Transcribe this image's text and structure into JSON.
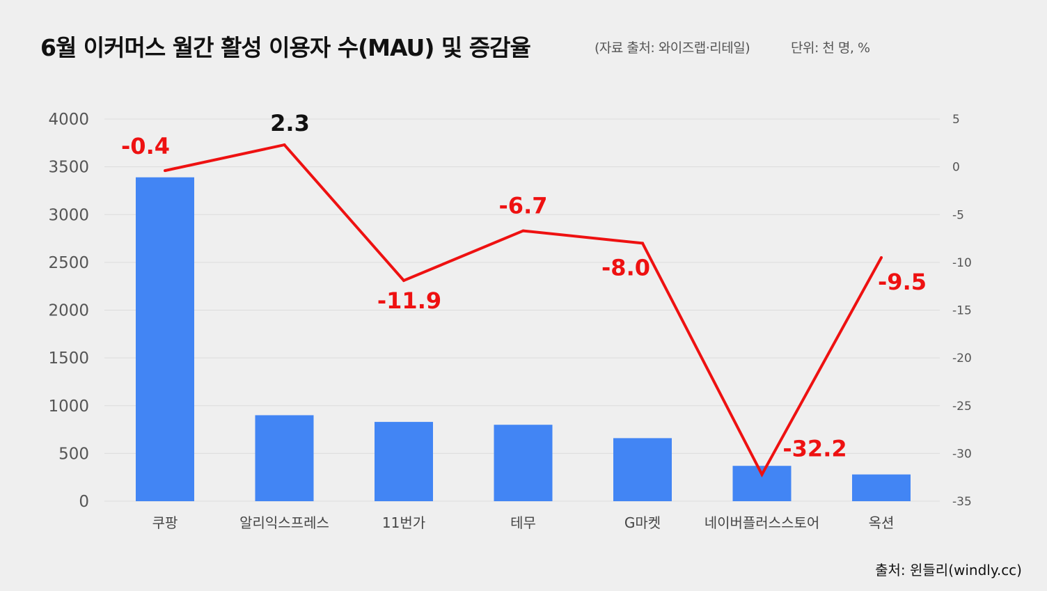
{
  "header": {
    "title": "6월 이커머스 월간 활성 이용자 수(MAU) 및 증감율",
    "source_note": "(자료 출처: 와이즈랩·리테일)",
    "unit_note": "단위: 천 명, %"
  },
  "footer": {
    "credit": "출처: 윈들리(windly.cc)"
  },
  "colors": {
    "bar": "#4285f4",
    "line": "#ee1111",
    "label_negative": "#ee1111",
    "label_positive": "#111111",
    "grid": "#dcdcdc"
  },
  "chart_data": {
    "type": "bar+line",
    "title": "6월 이커머스 월간 활성 이용자 수(MAU) 및 증감율",
    "categories": [
      "쿠팡",
      "알리익스프레스",
      "11번가",
      "테무",
      "G마켓",
      "네이버플러스스토어",
      "옥션"
    ],
    "series": [
      {
        "name": "MAU",
        "type": "bar",
        "axis": "left",
        "values": [
          3390,
          900,
          830,
          800,
          660,
          370,
          280
        ]
      },
      {
        "name": "증감율",
        "type": "line",
        "axis": "right",
        "values": [
          -0.4,
          2.3,
          -11.9,
          -6.7,
          -8.0,
          -32.2,
          -9.5
        ],
        "labels": [
          "-0.4",
          "2.3",
          "-11.9",
          "-6.7",
          "-8.0",
          "-32.2",
          "-9.5"
        ]
      }
    ],
    "left_axis": {
      "ylim": [
        0,
        4000
      ],
      "ticks": [
        "0",
        "500",
        "1000",
        "1500",
        "2000",
        "2500",
        "3000",
        "3500",
        "4000"
      ]
    },
    "right_axis": {
      "ylim": [
        -35,
        5
      ],
      "ticks": [
        "-35",
        "-30",
        "-25",
        "-20",
        "-15",
        "-10",
        "-5",
        "0",
        "5"
      ]
    },
    "grid": true
  }
}
